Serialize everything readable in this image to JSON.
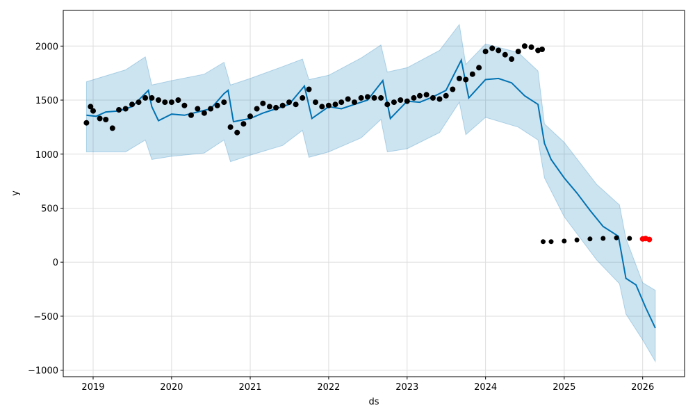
{
  "chart_data": {
    "type": "line",
    "title": "",
    "xlabel": "ds",
    "ylabel": "y",
    "xlim": [
      "2018-08-15",
      "2026-07-15"
    ],
    "ylim": [
      -1060,
      2330
    ],
    "grid": true,
    "x_ticks": [
      "2019",
      "2020",
      "2021",
      "2022",
      "2023",
      "2024",
      "2025",
      "2026"
    ],
    "y_ticks": [
      -1000,
      -500,
      0,
      500,
      1000,
      1500,
      2000
    ],
    "y_tick_labels": [
      "−1000",
      "−500",
      "0",
      "500",
      "1000",
      "1500",
      "2000"
    ],
    "colors": {
      "forecast": "#0072B2",
      "interval_fill": "#0072B2",
      "observed": "#000000",
      "recent": "#FF0000"
    },
    "forecast": {
      "x": [
        "2018-12-01",
        "2019-01-15",
        "2019-03-01",
        "2019-05-01",
        "2019-07-01",
        "2019-09-15",
        "2019-10-01",
        "2019-11-01",
        "2020-01-01",
        "2020-03-01",
        "2020-05-01",
        "2020-07-01",
        "2020-09-01",
        "2020-09-20",
        "2020-10-15",
        "2021-01-01",
        "2021-03-01",
        "2021-05-01",
        "2021-07-01",
        "2021-09-10",
        "2021-10-15",
        "2022-01-01",
        "2022-03-01",
        "2022-05-01",
        "2022-07-01",
        "2022-09-10",
        "2022-10-15",
        "2023-01-01",
        "2023-03-01",
        "2023-05-01",
        "2023-07-01",
        "2023-09-10",
        "2023-10-15",
        "2024-01-01",
        "2024-03-01",
        "2024-05-01",
        "2024-07-01",
        "2024-09-01",
        "2024-10-01",
        "2024-11-01",
        "2025-01-01",
        "2025-03-01",
        "2025-05-01",
        "2025-07-01",
        "2025-09-10",
        "2025-10-15",
        "2025-12-01",
        "2026-01-15",
        "2026-03-01"
      ],
      "y": [
        1360,
        1350,
        1390,
        1400,
        1440,
        1590,
        1440,
        1310,
        1370,
        1360,
        1390,
        1420,
        1560,
        1590,
        1300,
        1330,
        1380,
        1420,
        1460,
        1630,
        1330,
        1440,
        1420,
        1460,
        1500,
        1680,
        1330,
        1490,
        1480,
        1530,
        1590,
        1870,
        1520,
        1690,
        1700,
        1660,
        1540,
        1460,
        1100,
        950,
        780,
        640,
        480,
        330,
        240,
        -150,
        -210,
        -420,
        -610
      ]
    },
    "interval": {
      "x": [
        "2018-12-01",
        "2019-06-01",
        "2019-09-01",
        "2019-10-01",
        "2020-01-01",
        "2020-06-01",
        "2020-09-01",
        "2020-10-01",
        "2021-01-01",
        "2021-06-01",
        "2021-09-01",
        "2021-10-01",
        "2022-01-01",
        "2022-06-01",
        "2022-09-01",
        "2022-10-01",
        "2023-01-01",
        "2023-06-01",
        "2023-09-01",
        "2023-10-01",
        "2024-01-01",
        "2024-06-01",
        "2024-09-01",
        "2024-10-01",
        "2025-01-01",
        "2025-06-01",
        "2025-09-15",
        "2025-10-15",
        "2026-01-01",
        "2026-03-01"
      ],
      "upper": [
        1670,
        1780,
        1900,
        1640,
        1680,
        1740,
        1850,
        1640,
        1700,
        1810,
        1880,
        1690,
        1730,
        1890,
        2010,
        1760,
        1800,
        1960,
        2200,
        1830,
        2020,
        1940,
        1770,
        1280,
        1110,
        720,
        530,
        220,
        -190,
        -260
      ],
      "lower": [
        1020,
        1020,
        1130,
        950,
        980,
        1010,
        1130,
        930,
        990,
        1080,
        1220,
        970,
        1020,
        1150,
        1320,
        1020,
        1050,
        1200,
        1480,
        1180,
        1340,
        1250,
        1130,
        780,
        420,
        20,
        -200,
        -480,
        -720,
        -920
      ]
    },
    "observed": {
      "x": [
        "2018-12-01",
        "2018-12-20",
        "2019-01-01",
        "2019-02-01",
        "2019-03-01",
        "2019-04-01",
        "2019-05-01",
        "2019-06-01",
        "2019-07-01",
        "2019-08-01",
        "2019-09-01",
        "2019-10-01",
        "2019-11-01",
        "2019-12-01",
        "2020-01-01",
        "2020-02-01",
        "2020-03-01",
        "2020-04-01",
        "2020-05-01",
        "2020-06-01",
        "2020-07-01",
        "2020-08-01",
        "2020-09-01",
        "2020-10-01",
        "2020-11-01",
        "2020-12-01",
        "2021-01-01",
        "2021-02-01",
        "2021-03-01",
        "2021-04-01",
        "2021-05-01",
        "2021-06-01",
        "2021-07-01",
        "2021-08-01",
        "2021-09-01",
        "2021-10-01",
        "2021-11-01",
        "2021-12-01",
        "2022-01-01",
        "2022-02-01",
        "2022-03-01",
        "2022-04-01",
        "2022-05-01",
        "2022-06-01",
        "2022-07-01",
        "2022-08-01",
        "2022-09-01",
        "2022-10-01",
        "2022-11-01",
        "2022-12-01",
        "2023-01-01",
        "2023-02-01",
        "2023-03-01",
        "2023-04-01",
        "2023-05-01",
        "2023-06-01",
        "2023-07-01",
        "2023-08-01",
        "2023-09-01",
        "2023-10-01",
        "2023-11-01",
        "2023-12-01",
        "2024-01-01",
        "2024-02-01",
        "2024-03-01",
        "2024-04-01",
        "2024-05-01",
        "2024-06-01",
        "2024-07-01",
        "2024-08-01",
        "2024-09-01",
        "2024-09-20"
      ],
      "y": [
        1290,
        1440,
        1400,
        1330,
        1320,
        1240,
        1410,
        1420,
        1460,
        1480,
        1520,
        1520,
        1500,
        1480,
        1480,
        1500,
        1450,
        1360,
        1420,
        1380,
        1420,
        1450,
        1480,
        1250,
        1200,
        1280,
        1350,
        1420,
        1470,
        1440,
        1430,
        1450,
        1480,
        1460,
        1520,
        1600,
        1480,
        1440,
        1450,
        1460,
        1480,
        1510,
        1480,
        1520,
        1530,
        1520,
        1520,
        1460,
        1480,
        1500,
        1490,
        1520,
        1540,
        1550,
        1520,
        1510,
        1540,
        1600,
        1700,
        1690,
        1740,
        1800,
        1950,
        1980,
        1960,
        1920,
        1880,
        1950,
        2000,
        1990,
        1960,
        1970
      ]
    },
    "observed_recent": {
      "x": [
        "2024-09-25",
        "2024-11-01",
        "2025-01-01",
        "2025-03-01",
        "2025-05-01",
        "2025-07-01",
        "2025-09-01",
        "2025-11-01",
        "2025-12-31"
      ],
      "y": [
        190,
        190,
        195,
        205,
        215,
        220,
        225,
        220,
        215
      ]
    },
    "latest": {
      "x": [
        "2026-01-01",
        "2026-01-15",
        "2026-02-01"
      ],
      "y": [
        215,
        218,
        210
      ]
    }
  }
}
